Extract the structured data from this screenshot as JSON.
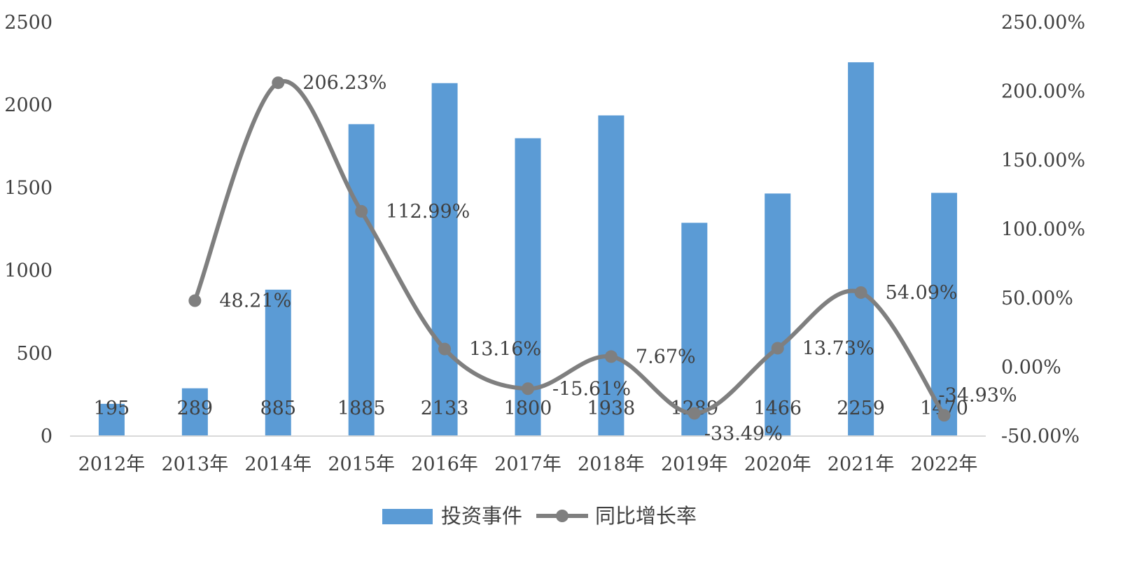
{
  "chart_data": {
    "type": "bar",
    "categories": [
      "2012年",
      "2013年",
      "2014年",
      "2015年",
      "2016年",
      "2017年",
      "2018年",
      "2019年",
      "2020年",
      "2021年",
      "2022年"
    ],
    "series": [
      {
        "name": "投资事件",
        "type": "bar",
        "axis": "left",
        "color": "#5B9BD5",
        "values": [
          195,
          289,
          885,
          1885,
          2133,
          1800,
          1938,
          1289,
          1466,
          2259,
          1470
        ],
        "labels": [
          "195",
          "289",
          "885",
          "1885",
          "2133",
          "1800",
          "1938",
          "1289",
          "1466",
          "2259",
          "1470"
        ]
      },
      {
        "name": "同比增长率",
        "type": "line",
        "smooth": true,
        "axis": "right",
        "color": "#7F7F7F",
        "values": [
          null,
          48.21,
          206.23,
          112.99,
          13.16,
          -15.61,
          7.67,
          -33.49,
          13.73,
          54.09,
          -34.93
        ],
        "labels": [
          "",
          "48.21%",
          "206.23%",
          "112.99%",
          "13.16%",
          "-15.61%",
          "7.67%",
          "-33.49%",
          "13.73%",
          "54.09%",
          "-34.93%"
        ]
      }
    ],
    "y_left": {
      "min": 0,
      "max": 2500,
      "ticks": [
        0,
        500,
        1000,
        1500,
        2000,
        2500
      ],
      "tick_labels": [
        "0",
        "500",
        "1000",
        "1500",
        "2000",
        "2500"
      ]
    },
    "y_right": {
      "min": -50,
      "max": 250,
      "ticks": [
        -50,
        0,
        50,
        100,
        150,
        200,
        250
      ],
      "tick_labels": [
        "-50.00%",
        "0.00%",
        "50.00%",
        "100.00%",
        "150.00%",
        "200.00%",
        "250.00%"
      ]
    },
    "grid": false,
    "legend_position": "bottom",
    "legend": [
      "投资事件",
      "同比增长率"
    ],
    "text_color": "#404040",
    "axis_color": "#D9D9D9"
  }
}
